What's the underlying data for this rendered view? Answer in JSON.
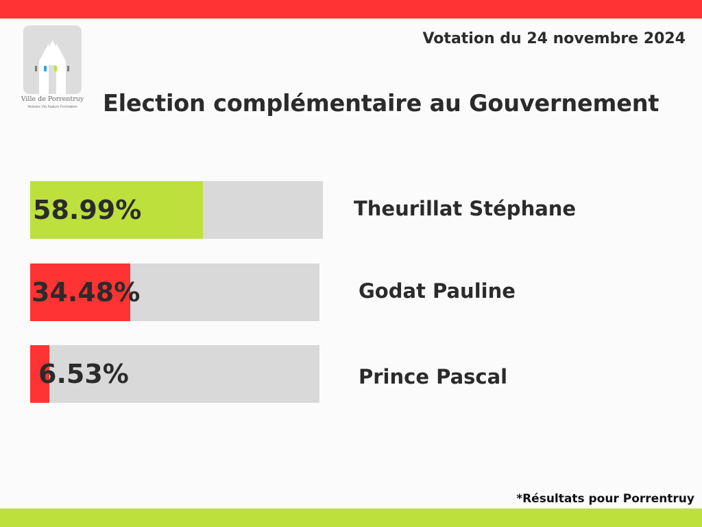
{
  "colors": {
    "top_bar": "#ff3333",
    "bottom_bar": "#bde03c",
    "track": "#d9d9d9",
    "text": "#2b2b2b"
  },
  "logo": {
    "icon": "house-logo-icon",
    "name": "Ville de Porrentruy",
    "tagline": "Histoire Vie Nature Formation"
  },
  "header": {
    "date": "Votation du 24 novembre 2024",
    "title": "Election complémentaire au Gouvernement"
  },
  "chart_data": {
    "type": "bar",
    "orientation": "horizontal",
    "categories": [
      "Theurillat Stéphane",
      "Godat Pauline",
      "Prince Pascal"
    ],
    "values": [
      58.99,
      34.48,
      6.53
    ],
    "value_labels": [
      "58.99%",
      "34.48%",
      "6.53%"
    ],
    "bar_colors": [
      "#bde03c",
      "#ff3333",
      "#ff3333"
    ],
    "unit": "%",
    "xlim": [
      0,
      100
    ],
    "grid": false,
    "legend": "none"
  },
  "footnote": "*Résultats pour Porrentruy"
}
